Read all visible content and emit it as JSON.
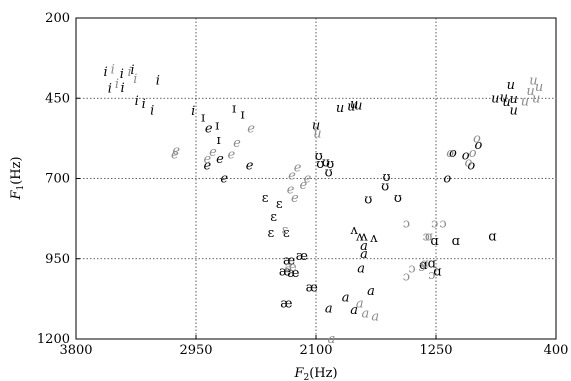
{
  "chart_data": {
    "type": "scatter",
    "xlabel": {
      "symbol": "F",
      "sub": "2",
      "unit": "(Hz)"
    },
    "ylabel": {
      "symbol": "F",
      "sub": "1",
      "unit": "(Hz)"
    },
    "xlim": [
      3800,
      400
    ],
    "ylim": [
      1200,
      200
    ],
    "x_ticks": [
      3800,
      2950,
      2100,
      1250,
      400
    ],
    "x_tick_labels": [
      "3800",
      "2950",
      "2100",
      "1250",
      "400"
    ],
    "y_ticks": [
      200,
      450,
      700,
      950,
      1200
    ],
    "y_tick_labels": [
      "200",
      "450",
      "700",
      "950",
      "1200"
    ],
    "grid": "dotted",
    "colors": {
      "black": "#000000",
      "gray": "#8c8c8c"
    },
    "series": [
      {
        "color": "black",
        "points": [
          {
            "x": 3590,
            "y": 368,
            "label": "i"
          },
          {
            "x": 3475,
            "y": 375,
            "label": "i"
          },
          {
            "x": 3400,
            "y": 362,
            "label": "i"
          },
          {
            "x": 3220,
            "y": 395,
            "label": "i"
          },
          {
            "x": 3560,
            "y": 420,
            "label": "i"
          },
          {
            "x": 3470,
            "y": 418,
            "label": "i"
          },
          {
            "x": 3370,
            "y": 458,
            "label": "i"
          },
          {
            "x": 3320,
            "y": 468,
            "label": "i"
          },
          {
            "x": 3260,
            "y": 488,
            "label": "i"
          },
          {
            "x": 2970,
            "y": 490,
            "label": "i"
          },
          {
            "x": 2900,
            "y": 510,
            "label": "ɪ"
          },
          {
            "x": 2800,
            "y": 535,
            "label": "ɪ"
          },
          {
            "x": 2680,
            "y": 482,
            "label": "ɪ"
          },
          {
            "x": 2620,
            "y": 500,
            "label": "ɪ"
          },
          {
            "x": 2790,
            "y": 580,
            "label": "ɪ"
          },
          {
            "x": 2860,
            "y": 545,
            "label": "e"
          },
          {
            "x": 2780,
            "y": 640,
            "label": "e"
          },
          {
            "x": 2870,
            "y": 660,
            "label": "e"
          },
          {
            "x": 2750,
            "y": 700,
            "label": "e"
          },
          {
            "x": 2570,
            "y": 660,
            "label": "e"
          },
          {
            "x": 2460,
            "y": 760,
            "label": "ɛ"
          },
          {
            "x": 2360,
            "y": 780,
            "label": "ɛ"
          },
          {
            "x": 2400,
            "y": 820,
            "label": "ɛ"
          },
          {
            "x": 2420,
            "y": 870,
            "label": "ɛ"
          },
          {
            "x": 2310,
            "y": 870,
            "label": "ɛ"
          },
          {
            "x": 2200,
            "y": 942,
            "label": "æ"
          },
          {
            "x": 2290,
            "y": 955,
            "label": "æ"
          },
          {
            "x": 2320,
            "y": 990,
            "label": "æ"
          },
          {
            "x": 2260,
            "y": 995,
            "label": "æ"
          },
          {
            "x": 2130,
            "y": 1040,
            "label": "æ"
          },
          {
            "x": 2310,
            "y": 1090,
            "label": "æ"
          },
          {
            "x": 2100,
            "y": 535,
            "label": "u"
          },
          {
            "x": 1930,
            "y": 480,
            "label": "u"
          },
          {
            "x": 1850,
            "y": 475,
            "label": "u"
          },
          {
            "x": 1830,
            "y": 468,
            "label": "u"
          },
          {
            "x": 1800,
            "y": 473,
            "label": "u"
          },
          {
            "x": 720,
            "y": 408,
            "label": "u"
          },
          {
            "x": 770,
            "y": 448,
            "label": "u"
          },
          {
            "x": 830,
            "y": 450,
            "label": "u"
          },
          {
            "x": 700,
            "y": 452,
            "label": "u"
          },
          {
            "x": 750,
            "y": 462,
            "label": "u"
          },
          {
            "x": 700,
            "y": 488,
            "label": "u"
          },
          {
            "x": 2080,
            "y": 630,
            "label": "ʊ"
          },
          {
            "x": 2030,
            "y": 650,
            "label": "ʊ"
          },
          {
            "x": 2000,
            "y": 655,
            "label": "ʊ"
          },
          {
            "x": 2010,
            "y": 682,
            "label": "ʊ"
          },
          {
            "x": 2070,
            "y": 655,
            "label": "ʊ"
          },
          {
            "x": 1600,
            "y": 695,
            "label": "ʊ"
          },
          {
            "x": 1610,
            "y": 725,
            "label": "ʊ"
          },
          {
            "x": 1520,
            "y": 760,
            "label": "ʊ"
          },
          {
            "x": 1730,
            "y": 765,
            "label": "ʊ"
          },
          {
            "x": 1130,
            "y": 620,
            "label": "o"
          },
          {
            "x": 1040,
            "y": 628,
            "label": "o"
          },
          {
            "x": 950,
            "y": 595,
            "label": "o"
          },
          {
            "x": 1000,
            "y": 660,
            "label": "o"
          },
          {
            "x": 1170,
            "y": 700,
            "label": "o"
          },
          {
            "x": 1760,
            "y": 880,
            "label": "ʌ"
          },
          {
            "x": 1830,
            "y": 860,
            "label": "ʌ"
          },
          {
            "x": 1790,
            "y": 880,
            "label": "ʌ"
          },
          {
            "x": 1690,
            "y": 885,
            "label": "ʌ"
          },
          {
            "x": 1760,
            "y": 910,
            "label": "a"
          },
          {
            "x": 1760,
            "y": 935,
            "label": "a"
          },
          {
            "x": 1780,
            "y": 980,
            "label": "a"
          },
          {
            "x": 1890,
            "y": 1070,
            "label": "a"
          },
          {
            "x": 2010,
            "y": 1105,
            "label": "a"
          },
          {
            "x": 1710,
            "y": 1050,
            "label": "a"
          },
          {
            "x": 1830,
            "y": 1110,
            "label": "a"
          },
          {
            "x": 1260,
            "y": 895,
            "label": "ɑ"
          },
          {
            "x": 1280,
            "y": 965,
            "label": "ɑ"
          },
          {
            "x": 1340,
            "y": 970,
            "label": "ɑ"
          },
          {
            "x": 1240,
            "y": 990,
            "label": "ɑ"
          },
          {
            "x": 1110,
            "y": 895,
            "label": "ɑ"
          },
          {
            "x": 850,
            "y": 880,
            "label": "ɑ"
          }
        ]
      },
      {
        "color": "gray",
        "points": [
          {
            "x": 3540,
            "y": 360,
            "label": "i"
          },
          {
            "x": 3510,
            "y": 405,
            "label": "i"
          },
          {
            "x": 3420,
            "y": 368,
            "label": "i"
          },
          {
            "x": 3380,
            "y": 390,
            "label": "i"
          },
          {
            "x": 2870,
            "y": 640,
            "label": "e"
          },
          {
            "x": 2830,
            "y": 618,
            "label": "e"
          },
          {
            "x": 2700,
            "y": 625,
            "label": "e"
          },
          {
            "x": 2660,
            "y": 590,
            "label": "e"
          },
          {
            "x": 2560,
            "y": 545,
            "label": "e"
          },
          {
            "x": 3090,
            "y": 612,
            "label": "e"
          },
          {
            "x": 3100,
            "y": 625,
            "label": "e"
          },
          {
            "x": 2270,
            "y": 690,
            "label": "e"
          },
          {
            "x": 2230,
            "y": 665,
            "label": "e"
          },
          {
            "x": 2280,
            "y": 735,
            "label": "e"
          },
          {
            "x": 2190,
            "y": 720,
            "label": "e"
          },
          {
            "x": 2250,
            "y": 760,
            "label": "e"
          },
          {
            "x": 2160,
            "y": 700,
            "label": "e"
          },
          {
            "x": 2320,
            "y": 860,
            "label": "ɛ"
          },
          {
            "x": 2280,
            "y": 975,
            "label": "æ"
          },
          {
            "x": 960,
            "y": 575,
            "label": "o"
          },
          {
            "x": 990,
            "y": 620,
            "label": "o"
          },
          {
            "x": 1020,
            "y": 650,
            "label": "o"
          },
          {
            "x": 1150,
            "y": 620,
            "label": "o"
          },
          {
            "x": 1460,
            "y": 840,
            "label": "ɔ"
          },
          {
            "x": 1260,
            "y": 840,
            "label": "ɔ"
          },
          {
            "x": 1200,
            "y": 840,
            "label": "ɔ"
          },
          {
            "x": 1320,
            "y": 880,
            "label": "ɔ"
          },
          {
            "x": 1420,
            "y": 980,
            "label": "ɔ"
          },
          {
            "x": 1350,
            "y": 975,
            "label": "ɔ"
          },
          {
            "x": 1280,
            "y": 1000,
            "label": "ɔ"
          },
          {
            "x": 1460,
            "y": 1005,
            "label": "ɔ"
          },
          {
            "x": 1300,
            "y": 880,
            "label": "ɑ"
          },
          {
            "x": 1330,
            "y": 965,
            "label": "ɑ"
          },
          {
            "x": 1790,
            "y": 1090,
            "label": "a"
          },
          {
            "x": 1750,
            "y": 1120,
            "label": "a"
          },
          {
            "x": 1680,
            "y": 1130,
            "label": "a"
          },
          {
            "x": 1990,
            "y": 1200,
            "label": "a"
          },
          {
            "x": 560,
            "y": 395,
            "label": "u"
          },
          {
            "x": 520,
            "y": 415,
            "label": "u"
          },
          {
            "x": 580,
            "y": 428,
            "label": "u"
          },
          {
            "x": 540,
            "y": 450,
            "label": "u"
          },
          {
            "x": 620,
            "y": 460,
            "label": "u"
          },
          {
            "x": 2090,
            "y": 560,
            "label": "u"
          }
        ]
      }
    ]
  }
}
